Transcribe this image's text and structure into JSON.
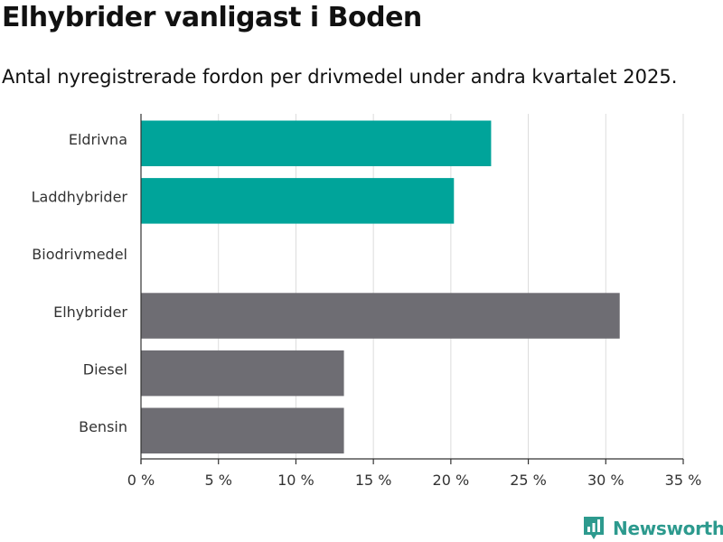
{
  "header": {
    "title": "Elhybrider vanligast i Boden",
    "subtitle": "Antal nyregistrerade fordon per drivmedel under andra kvartalet 2025."
  },
  "brand": {
    "name": "Newsworthy",
    "color": "#2d9a8e"
  },
  "colors": {
    "highlight": "#00a49a",
    "default": "#6e6d73",
    "grid": "#dcdcdc",
    "axis": "#333333"
  },
  "chart_data": {
    "type": "bar",
    "orientation": "horizontal",
    "categories": [
      "Eldrivna",
      "Laddhybrider",
      "Biodrivmedel",
      "Elhybrider",
      "Diesel",
      "Bensin"
    ],
    "values": [
      22.6,
      20.2,
      0,
      30.9,
      13.1,
      13.1
    ],
    "highlighted": [
      true,
      true,
      false,
      false,
      false,
      false
    ],
    "xlim": [
      0,
      35
    ],
    "xticks": [
      0,
      5,
      10,
      15,
      20,
      25,
      30,
      35
    ],
    "xtick_labels": [
      "0 %",
      "5 %",
      "10 %",
      "15 %",
      "20 %",
      "25 %",
      "30 %",
      "35 %"
    ],
    "xlabel": "",
    "ylabel": "",
    "grid": true,
    "legend": "none"
  }
}
